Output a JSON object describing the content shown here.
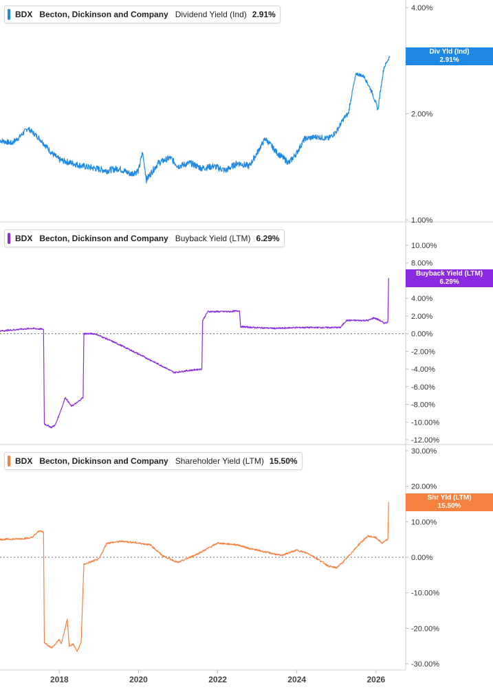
{
  "panels": [
    {
      "ticker": "BDX",
      "company": "Becton, Dickinson and Company",
      "metric": "Dividend Yield (Ind)",
      "value": "2.91%",
      "tag_label": "Div Yld (Ind)",
      "tag_value": "2.91%",
      "color": "#1e88e5"
    },
    {
      "ticker": "BDX",
      "company": "Becton, Dickinson and Company",
      "metric": "Buyback Yield (LTM)",
      "value": "6.29%",
      "tag_label": "Buyback Yield (LTM)",
      "tag_value": "6.29%",
      "color": "#8a2be2"
    },
    {
      "ticker": "BDX",
      "company": "Becton, Dickinson and Company",
      "metric": "Shareholder Yield (LTM)",
      "value": "15.50%",
      "tag_label": "Shr Yld (LTM)",
      "tag_value": "15.50%",
      "color": "#f5813f"
    }
  ],
  "x_ticks": [
    "2018",
    "2020",
    "2022",
    "2024",
    "2026"
  ],
  "chart_data": [
    {
      "type": "line",
      "title": "Dividend Yield (Ind)",
      "scale": "log",
      "ylim": [
        1.0,
        4.0
      ],
      "yticks": [
        "4.00%",
        "2.00%",
        "1.00%"
      ],
      "x": [
        2016.5,
        2016.8,
        2017.0,
        2017.2,
        2017.5,
        2017.8,
        2018.0,
        2018.3,
        2018.6,
        2018.9,
        2019.2,
        2019.5,
        2019.8,
        2020.0,
        2020.1,
        2020.2,
        2020.5,
        2020.8,
        2021.0,
        2021.3,
        2021.6,
        2021.9,
        2022.2,
        2022.5,
        2022.8,
        2023.0,
        2023.2,
        2023.5,
        2023.8,
        2024.0,
        2024.2,
        2024.5,
        2024.8,
        2025.0,
        2025.2,
        2025.3,
        2025.5,
        2025.7,
        2025.9,
        2026.05,
        2026.2,
        2026.35
      ],
      "y": [
        1.68,
        1.65,
        1.72,
        1.82,
        1.7,
        1.55,
        1.48,
        1.45,
        1.42,
        1.4,
        1.38,
        1.4,
        1.35,
        1.38,
        1.55,
        1.3,
        1.45,
        1.5,
        1.42,
        1.45,
        1.4,
        1.42,
        1.38,
        1.45,
        1.42,
        1.55,
        1.7,
        1.55,
        1.45,
        1.55,
        1.7,
        1.72,
        1.7,
        1.78,
        1.95,
        2.0,
        2.6,
        2.55,
        2.3,
        2.05,
        2.7,
        2.91
      ],
      "series": [
        {
          "name": "Div Yld (Ind)",
          "last": 2.91
        }
      ]
    },
    {
      "type": "line",
      "title": "Buyback Yield (LTM)",
      "ylim": [
        -12.0,
        10.0
      ],
      "yticks": [
        "10.00%",
        "8.00%",
        "6.00%",
        "4.00%",
        "2.00%",
        "0.00%",
        "-2.00%",
        "-4.00%",
        "-6.00%",
        "-8.00%",
        "-10.00%",
        "-12.00%"
      ],
      "x": [
        2016.5,
        2017.0,
        2017.3,
        2017.6,
        2017.62,
        2017.8,
        2017.9,
        2018.05,
        2018.15,
        2018.3,
        2018.45,
        2018.6,
        2018.62,
        2018.9,
        2019.5,
        2020.0,
        2020.7,
        2020.9,
        2021.2,
        2021.6,
        2021.62,
        2021.75,
        2022.3,
        2022.55,
        2022.58,
        2022.9,
        2023.5,
        2024.0,
        2024.5,
        2025.1,
        2025.25,
        2025.5,
        2025.8,
        2025.95,
        2026.1,
        2026.2,
        2026.3,
        2026.32
      ],
      "y": [
        0.3,
        0.5,
        0.6,
        0.5,
        -10.2,
        -10.6,
        -10.3,
        -8.5,
        -7.2,
        -8.2,
        -7.8,
        -7.2,
        0.0,
        0.0,
        -1.2,
        -2.3,
        -3.9,
        -4.4,
        -4.2,
        -4.0,
        1.5,
        2.5,
        2.5,
        2.6,
        0.8,
        0.7,
        0.6,
        0.7,
        0.7,
        0.7,
        1.5,
        1.5,
        1.5,
        1.8,
        1.5,
        1.2,
        1.3,
        6.29
      ],
      "series": [
        {
          "name": "Buyback Yield (LTM)",
          "last": 6.29
        }
      ]
    },
    {
      "type": "line",
      "title": "Shareholder Yield (LTM)",
      "ylim": [
        -30.0,
        30.0
      ],
      "yticks": [
        "30.00%",
        "20.00%",
        "10.00%",
        "0.00%",
        "-10.00%",
        "-20.00%",
        "-30.00%"
      ],
      "x": [
        2016.5,
        2017.0,
        2017.3,
        2017.5,
        2017.6,
        2017.62,
        2017.8,
        2017.9,
        2018.0,
        2018.05,
        2018.2,
        2018.25,
        2018.35,
        2018.45,
        2018.55,
        2018.62,
        2019.0,
        2019.2,
        2019.6,
        2020.0,
        2020.3,
        2020.6,
        2021.0,
        2021.5,
        2022.0,
        2022.5,
        2022.8,
        2023.2,
        2023.6,
        2024.0,
        2024.3,
        2024.6,
        2024.8,
        2025.0,
        2025.2,
        2025.4,
        2025.6,
        2025.8,
        2026.0,
        2026.15,
        2026.3,
        2026.32
      ],
      "y": [
        5.0,
        5.2,
        5.5,
        7.5,
        7.0,
        -24.0,
        -25.5,
        -24.5,
        -23.0,
        -24.5,
        -17.5,
        -25.0,
        -24.5,
        -26.5,
        -24.0,
        -2.0,
        -0.5,
        4.0,
        4.5,
        4.0,
        3.5,
        0.5,
        -1.5,
        1.0,
        4.0,
        3.5,
        2.5,
        1.5,
        0.5,
        2.0,
        1.0,
        -1.0,
        -2.5,
        -3.0,
        -1.0,
        1.5,
        4.0,
        6.0,
        5.5,
        4.0,
        5.0,
        15.5
      ],
      "series": [
        {
          "name": "Shr Yld (LTM)",
          "last": 15.5
        }
      ]
    }
  ]
}
